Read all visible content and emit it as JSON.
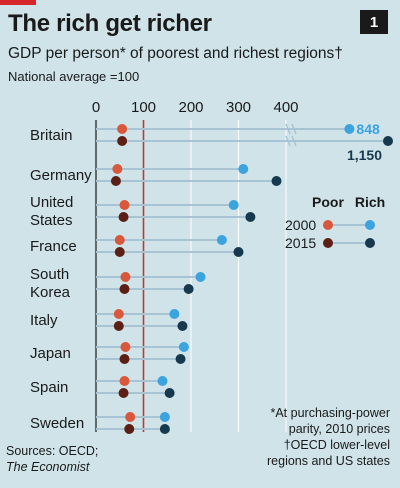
{
  "header": {
    "title": "The rich get richer",
    "badge": "1",
    "subtitle": "GDP per person* of poorest and richest regions†",
    "note": "National average =100"
  },
  "legend": {
    "poor_label": "Poor",
    "rich_label": "Rich",
    "year_2000": "2000",
    "year_2015": "2015"
  },
  "colors": {
    "poor_2000": "#d9573a",
    "rich_2000": "#3ba3dd",
    "poor_2015": "#5c1f16",
    "rich_2015": "#17394d",
    "connector": "#a8c4d4",
    "reference_line": "#c0392b",
    "axis_text": "#1a1a1a"
  },
  "footnotes": [
    "*At purchasing-power",
    "parity, 2010 prices",
    "†OECD lower-level",
    "regions and US states"
  ],
  "sources": {
    "label": "Sources: OECD;",
    "publication": "The Economist"
  },
  "chart_data": {
    "type": "dot-range",
    "x_ticks": [
      0,
      100,
      200,
      300,
      400
    ],
    "xlim": [
      0,
      400
    ],
    "reference_line": 100,
    "axis_break": true,
    "legend_position": "right",
    "categories": [
      [
        "Britain"
      ],
      [
        "Germany"
      ],
      [
        "United",
        "States"
      ],
      [
        "France"
      ],
      [
        "South",
        "Korea"
      ],
      [
        "Italy"
      ],
      [
        "Japan"
      ],
      [
        "Spain"
      ],
      [
        "Sweden"
      ]
    ],
    "series": [
      {
        "name": "Poor 2000",
        "values": [
          55,
          45,
          60,
          50,
          62,
          48,
          62,
          60,
          72
        ]
      },
      {
        "name": "Rich 2000",
        "values": [
          848,
          310,
          290,
          265,
          220,
          165,
          185,
          140,
          145
        ]
      },
      {
        "name": "Poor 2015",
        "values": [
          55,
          42,
          58,
          50,
          60,
          48,
          60,
          58,
          70
        ]
      },
      {
        "name": "Rich 2015",
        "values": [
          1150,
          380,
          325,
          300,
          195,
          182,
          178,
          155,
          145
        ]
      }
    ],
    "data_labels": [
      {
        "category": "Britain",
        "series": "Rich 2000",
        "text": "848"
      },
      {
        "category": "Britain",
        "series": "Rich 2015",
        "text": "1,150"
      }
    ]
  }
}
